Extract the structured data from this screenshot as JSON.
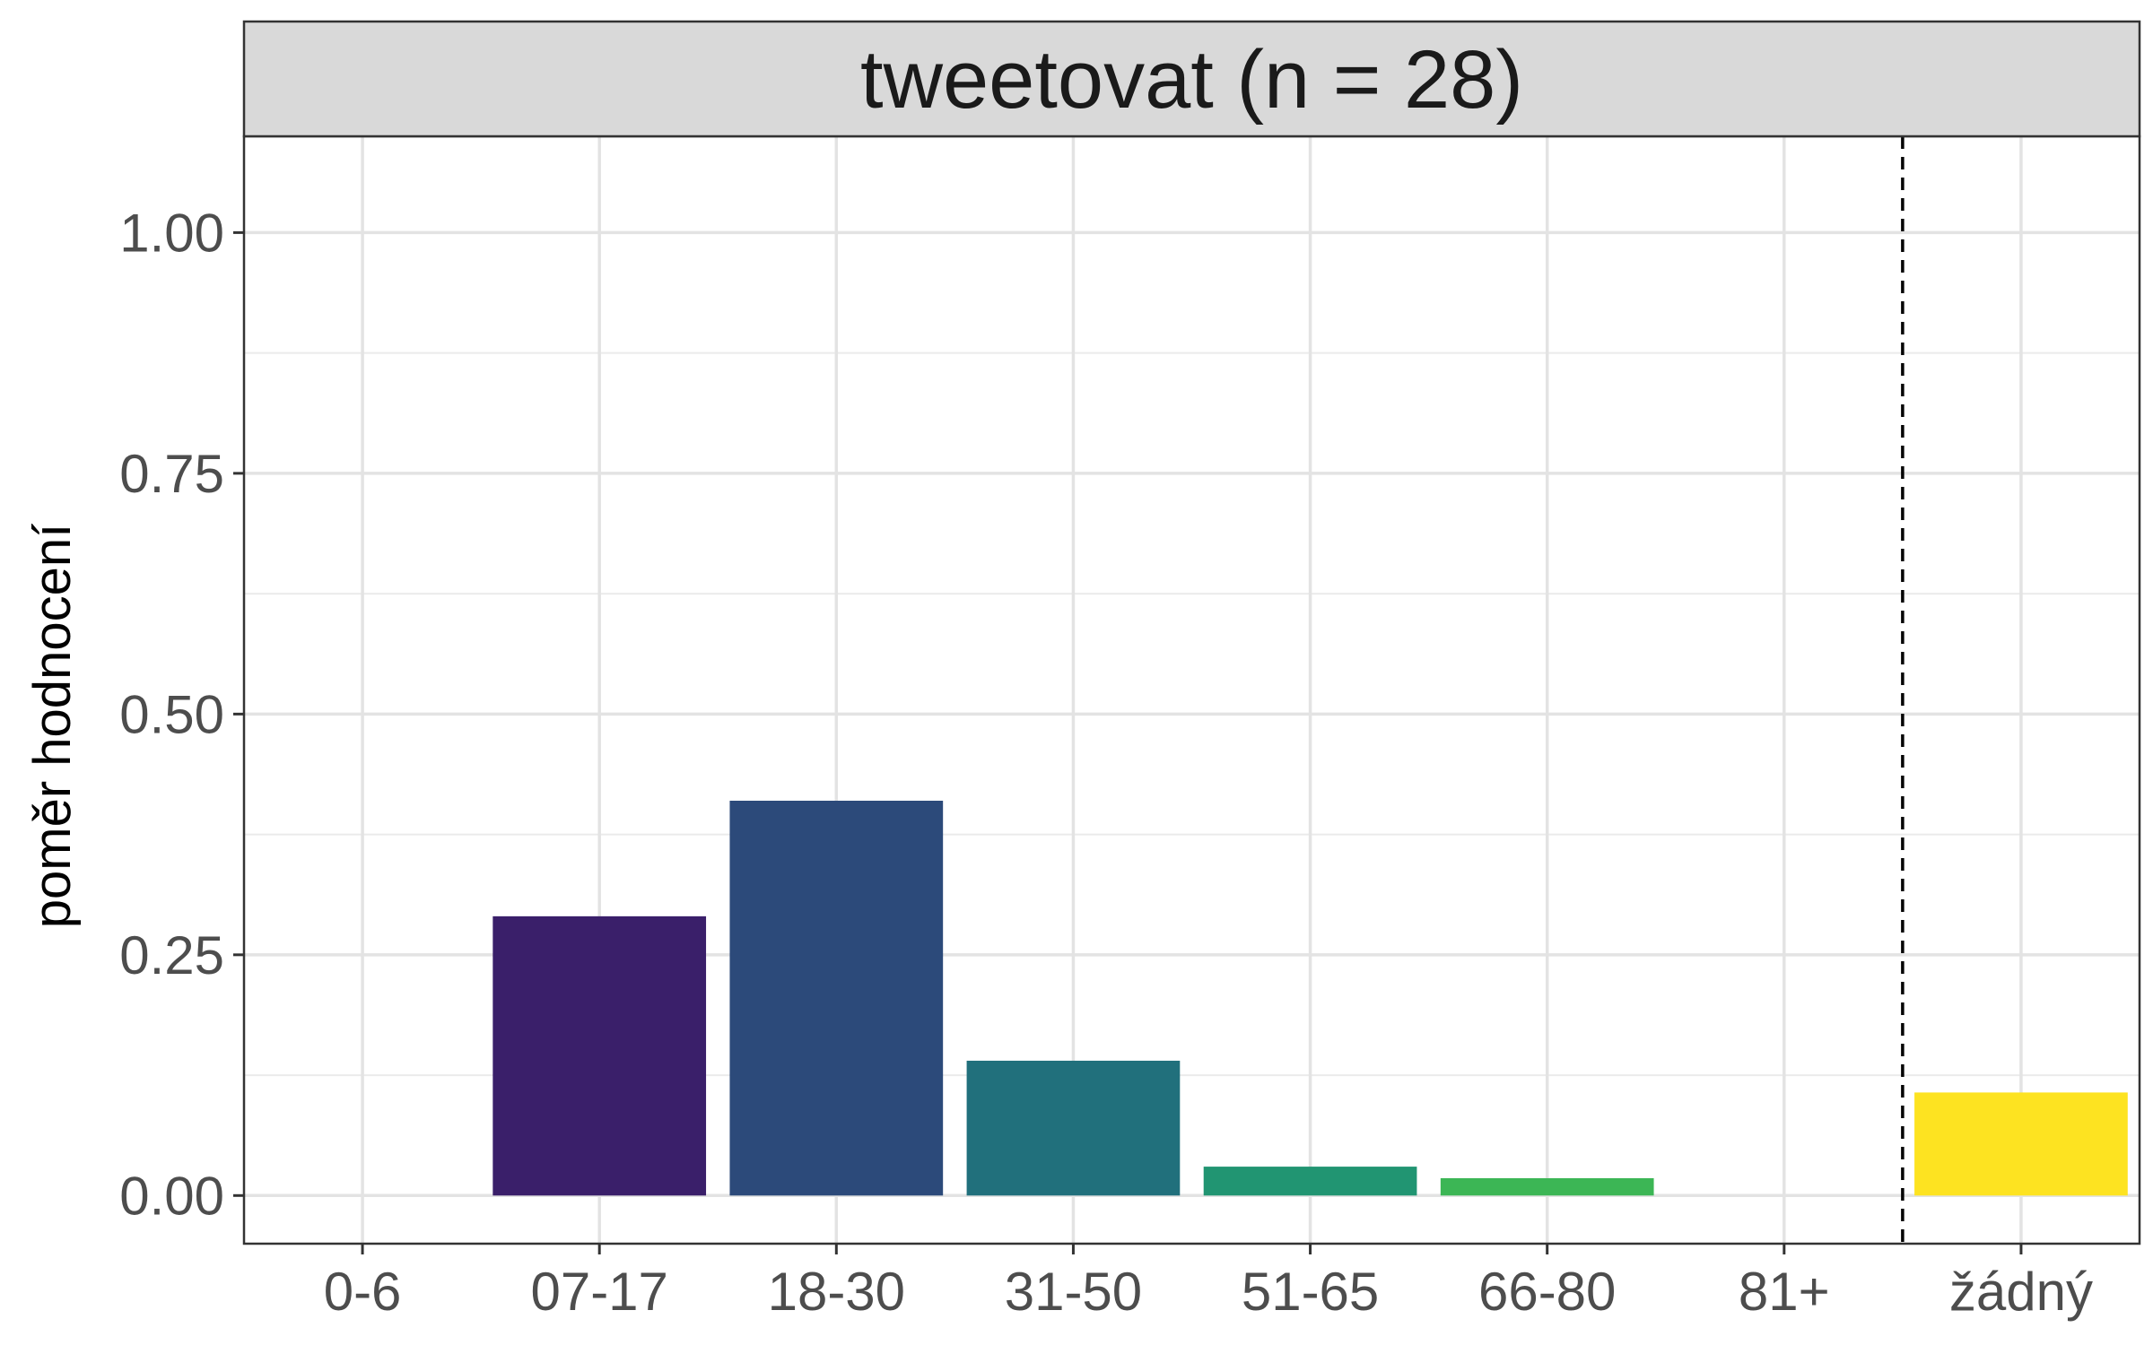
{
  "chart_data": {
    "type": "bar",
    "panel_title": "tweetovat (n = 28)",
    "xlabel": "",
    "ylabel": "poměr hodnocení",
    "categories": [
      "0-6",
      "07-17",
      "18-30",
      "31-50",
      "51-65",
      "66-80",
      "81+",
      "žádný"
    ],
    "values": [
      0,
      0.29,
      0.41,
      0.14,
      0.03,
      0.018,
      0,
      0.107
    ],
    "colors": [
      "#440154",
      "#3a1f6a",
      "#2c4a7a",
      "#21707c",
      "#219572",
      "#3cb655",
      "#8fd744",
      "#fde321"
    ],
    "ylim": [
      -0.05,
      1.1
    ],
    "yticks": [
      0,
      0.25,
      0.5,
      0.75,
      1.0
    ],
    "ytick_labels": [
      "0.00",
      "0.25",
      "0.50",
      "0.75",
      "1.00"
    ],
    "reference_line": {
      "position": "between 81+ and žádný",
      "style": "dashed"
    },
    "grid": true,
    "legend": "none"
  }
}
